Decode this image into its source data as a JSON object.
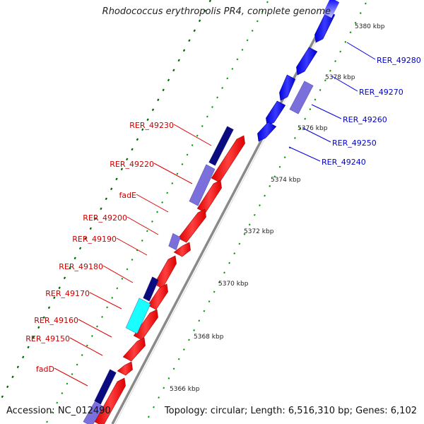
{
  "title": "Rhodococcus erythropolis PR4, complete genome",
  "accession": "Accession: NC_012490",
  "summary": "Topology: circular; Length: 6,516,310 bp; Genes: 6,102",
  "colors": {
    "background": "#ffffff",
    "backbone": "#808080",
    "forward_gene": "#ff0000",
    "reverse_gene": "#0000ff",
    "forward_label": "#cc0000",
    "reverse_label": "#0000cc",
    "feature_violet": "#7a6fdb",
    "feature_navy": "#0b0b80",
    "feature_cyan": "#19ffff",
    "tick_major": "#006400",
    "tick_minor": "#009900"
  },
  "scale_labels": [
    "5366 kbp",
    "5368 kbp",
    "5370 kbp",
    "5372 kbp",
    "5374 kbp",
    "5376 kbp",
    "5378 kbp",
    "5380 kbp"
  ],
  "forward_gene_labels": [
    "RER_49230",
    "RER_49220",
    "fadE",
    "RER_49200",
    "RER_49190",
    "RER_49180",
    "RER_49170",
    "RER_49160",
    "RER_49150",
    "fadD"
  ],
  "reverse_gene_labels": [
    "RER_49280",
    "RER_49270",
    "RER_49260",
    "RER_49250",
    "RER_49240"
  ]
}
